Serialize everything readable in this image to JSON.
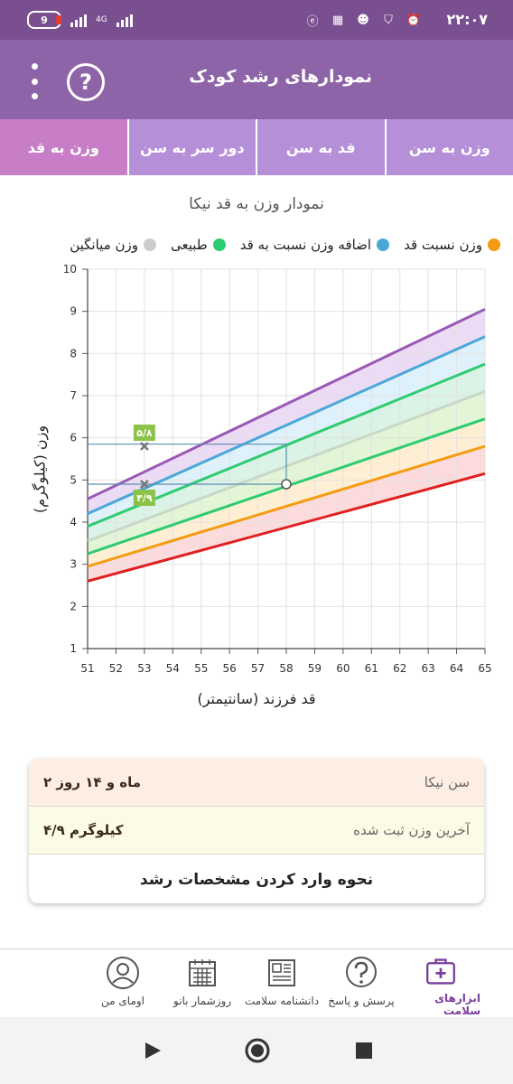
{
  "status_bar": {
    "time": "۲۲:۰۷",
    "battery": "9",
    "network": "4G"
  },
  "header": {
    "title": "نمودارهای رشد کودک",
    "help_label": "?"
  },
  "tabs": [
    {
      "label": "وزن به سن",
      "active": false
    },
    {
      "label": "قد به سن",
      "active": false
    },
    {
      "label": "دور سر به سن",
      "active": false
    },
    {
      "label": "وزن به قد",
      "active": true
    }
  ],
  "chart_title": "نمودار وزن به قد نیکا",
  "legend": [
    {
      "label": "وزن نسبت قد",
      "color": "#f39c12"
    },
    {
      "label": "اضافه وزن نسبت به قد",
      "color": "#4aa8d8"
    },
    {
      "label": "طبیعی",
      "color": "#2ecc71"
    },
    {
      "label": "وزن میانگین",
      "color": "#cccccc"
    }
  ],
  "chart_data": {
    "type": "line",
    "title": "نمودار وزن به قد نیکا",
    "xlabel": "قد فرزند (سانتیمتر)",
    "ylabel": "وزن (کیلوگرم)",
    "xlim": [
      51,
      65
    ],
    "ylim": [
      1,
      10
    ],
    "x_ticks": [
      51,
      52,
      53,
      54,
      55,
      56,
      57,
      58,
      59,
      60,
      61,
      62,
      63,
      64,
      65
    ],
    "y_ticks": [
      1,
      2,
      3,
      4,
      5,
      6,
      7,
      8,
      9,
      10
    ],
    "grid": true,
    "legend_position": "top",
    "series": [
      {
        "color": "#9b59b6",
        "x": [
          51,
          65
        ],
        "y": [
          4.55,
          9.05
        ]
      },
      {
        "color": "#4aa8d8",
        "x": [
          51,
          65
        ],
        "y": [
          4.2,
          8.4
        ]
      },
      {
        "color": "#2ecc71",
        "x": [
          51,
          65
        ],
        "y": [
          3.9,
          7.75
        ]
      },
      {
        "color": "#c8d8c8",
        "x": [
          51,
          65
        ],
        "y": [
          3.55,
          7.1
        ]
      },
      {
        "color": "#2ecc71",
        "x": [
          51,
          65
        ],
        "y": [
          3.25,
          6.45
        ]
      },
      {
        "color": "#f39c12",
        "x": [
          51,
          65
        ],
        "y": [
          2.95,
          5.8
        ]
      },
      {
        "color": "#e02020",
        "x": [
          51,
          65
        ],
        "y": [
          2.6,
          5.15
        ]
      }
    ],
    "fill_bands": [
      {
        "color": "#e6cff2",
        "between": [
          0,
          1
        ]
      },
      {
        "color": "#d4ecf8",
        "between": [
          1,
          2
        ]
      },
      {
        "color": "#cfeedd",
        "between": [
          2,
          3
        ]
      },
      {
        "color": "#d9f2c9",
        "between": [
          3,
          4
        ]
      },
      {
        "color": "#fde8c4",
        "between": [
          4,
          5
        ]
      },
      {
        "color": "#f9cfcf",
        "between": [
          5,
          6
        ]
      }
    ],
    "points": [
      {
        "x": 53,
        "y": 5.8,
        "label": "۵/۸",
        "marker": "x"
      },
      {
        "x": 53,
        "y": 4.9,
        "label": "۴/۹",
        "marker": "x"
      },
      {
        "x": 58,
        "y": 4.9,
        "label": "",
        "marker": "circle"
      }
    ],
    "guides": [
      {
        "x1": 51,
        "y1": 5.85,
        "x2": 58,
        "y2": 5.85
      },
      {
        "x1": 58,
        "y1": 5.85,
        "x2": 58,
        "y2": 4.9
      },
      {
        "x1": 51,
        "y1": 4.9,
        "x2": 58,
        "y2": 4.9
      }
    ]
  },
  "info": {
    "age_label": "سن نیکا",
    "age_value": "۲ ماه و ۱۴ روز",
    "weight_label": "آخرین وزن ثبت شده",
    "weight_value": "۴/۹ کیلوگرم",
    "help_link": "نحوه وارد کردن مشخصات رشد"
  },
  "bottom_nav": [
    {
      "label": "ابزارهای سلامت",
      "icon": "medkit-icon",
      "active": true
    },
    {
      "label": "پرسش و پاسخ",
      "icon": "question-icon",
      "active": false
    },
    {
      "label": "دانشنامه سلامت",
      "icon": "newspaper-icon",
      "active": false
    },
    {
      "label": "روزشمار بانو",
      "icon": "calendar-icon",
      "active": false
    },
    {
      "label": "اومای من",
      "icon": "avatar-icon",
      "active": false
    }
  ]
}
